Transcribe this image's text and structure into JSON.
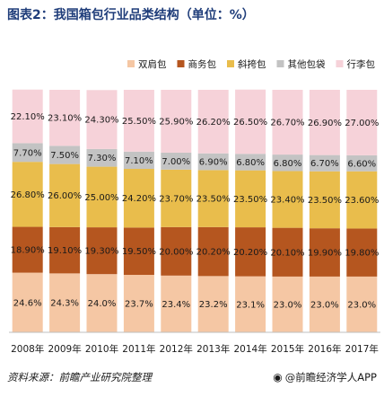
{
  "title": "图表2：我国箱包行业品类结构（单位：%）",
  "footer": {
    "source": "资料来源：前瞻产业研究院整理",
    "brand": "@前瞻经济学人APP",
    "brand_icon": "weibo-icon"
  },
  "chart_data": {
    "type": "bar",
    "stacked": true,
    "title": "图表2：我国箱包行业品类结构（单位：%）",
    "xlabel": "",
    "ylabel": "",
    "ylim": [
      0,
      100
    ],
    "legend_position": "top",
    "grid": false,
    "categories": [
      "2008年",
      "2009年",
      "2010年",
      "2011年",
      "2012年",
      "2013年",
      "2014年",
      "2015年",
      "2016年",
      "2017年"
    ],
    "series": [
      {
        "name": "双肩包",
        "color": "#f5c7a4",
        "values": [
          24.6,
          24.3,
          24.0,
          23.7,
          23.4,
          23.2,
          23.1,
          23.0,
          23.0,
          23.0
        ],
        "labels": [
          "24.6%",
          "24.3%",
          "24.0%",
          "23.7%",
          "23.4%",
          "23.2%",
          "23.1%",
          "23.0%",
          "23.0%",
          "23.0%"
        ]
      },
      {
        "name": "商务包",
        "color": "#b5561f",
        "values": [
          18.9,
          19.1,
          19.3,
          19.5,
          20.0,
          20.2,
          20.2,
          20.1,
          19.9,
          19.8
        ],
        "labels": [
          "18.90%",
          "19.10%",
          "19.30%",
          "19.50%",
          "20.00%",
          "20.20%",
          "20.20%",
          "20.10%",
          "19.90%",
          "19.80%"
        ]
      },
      {
        "name": "斜挎包",
        "color": "#e9bd4c",
        "values": [
          26.8,
          26.0,
          25.0,
          24.2,
          23.7,
          23.5,
          23.5,
          23.4,
          23.5,
          23.6
        ],
        "labels": [
          "26.80%",
          "26.00%",
          "25.00%",
          "24.20%",
          "23.70%",
          "23.50%",
          "23.50%",
          "23.40%",
          "23.50%",
          "23.60%"
        ]
      },
      {
        "name": "其他包袋",
        "color": "#c3c3c3",
        "values": [
          7.7,
          7.5,
          7.3,
          7.1,
          7.0,
          6.9,
          6.8,
          6.8,
          6.7,
          6.6
        ],
        "labels": [
          "7.70%",
          "7.50%",
          "7.30%",
          "7.10%",
          "7.00%",
          "6.90%",
          "6.80%",
          "6.80%",
          "6.70%",
          "6.60%"
        ]
      },
      {
        "name": "行李包",
        "color": "#f6d2d9",
        "values": [
          22.1,
          23.1,
          24.3,
          25.5,
          25.9,
          26.2,
          26.5,
          26.7,
          26.9,
          27.0
        ],
        "labels": [
          "22.10%",
          "23.10%",
          "24.30%",
          "25.50%",
          "25.90%",
          "26.20%",
          "26.50%",
          "26.70%",
          "26.90%",
          "27.00%"
        ]
      }
    ]
  }
}
